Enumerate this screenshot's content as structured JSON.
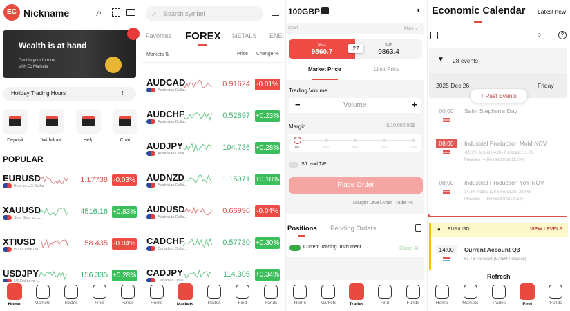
{
  "colors": {
    "accent": "#e84a3f",
    "up": "#3cbf5a",
    "down": "#ef4b45"
  },
  "home": {
    "nickname": "Nickname",
    "logo": "EC",
    "banner": {
      "title": "Wealth is at hand",
      "subtitle1": "Double your fortune",
      "subtitle2": "with Ec Markets"
    },
    "holiday": "Holiday Trading Hours",
    "actions": [
      {
        "label": "Deposit",
        "icon": "deposit-icon"
      },
      {
        "label": "Withdraw",
        "icon": "withdraw-icon"
      },
      {
        "label": "Help",
        "icon": "help-icon"
      },
      {
        "label": "Chat",
        "icon": "chat-icon"
      }
    ],
    "popular_title": "POPULAR",
    "rows": [
      {
        "symbol": "EURUSD",
        "desc": "Euro vs US Dollar",
        "price": "1.17738",
        "change": "-0.03%",
        "dir": "down"
      },
      {
        "symbol": "XAUUSD",
        "desc": "Spot Gold vs U...",
        "price": "4516.16",
        "change": "+0.83%",
        "dir": "up"
      },
      {
        "symbol": "XTIUSD",
        "desc": "WTI Crude Oil...",
        "price": "58.435",
        "change": "-0.04%",
        "dir": "down"
      },
      {
        "symbol": "USDJPY",
        "desc": "US Dollar vs ...",
        "price": "156.335",
        "change": "+0.28%",
        "dir": "up"
      }
    ]
  },
  "markets": {
    "search_placeholder": "Search symbol",
    "tabs": [
      "Favorites",
      "FOREX",
      "METALS",
      "ENEI"
    ],
    "active_tab": "FOREX",
    "headers": {
      "markets": "Markets ⇅",
      "price": "Price",
      "change": "Change %"
    },
    "rows": [
      {
        "symbol": "AUDCAD",
        "desc": "Australian Dolla...",
        "price": "0.91624",
        "change": "-0.01%",
        "dir": "down"
      },
      {
        "symbol": "AUDCHF",
        "desc": "Australian Dolla...",
        "price": "0.52897",
        "change": "+0.23%",
        "dir": "up"
      },
      {
        "symbol": "AUDJPY",
        "desc": "Australian Dolla...",
        "price": "104.736",
        "change": "+0.28%",
        "dir": "up"
      },
      {
        "symbol": "AUDNZD",
        "desc": "Australian Dolla...",
        "price": "1.15071",
        "change": "+0.18%",
        "dir": "up"
      },
      {
        "symbol": "AUDUSD",
        "desc": "Australian Dolla...",
        "price": "0.66996",
        "change": "-0.04%",
        "dir": "down"
      },
      {
        "symbol": "CADCHF",
        "desc": "Canadian Dolla...",
        "price": "0.57730",
        "change": "+0.30%",
        "dir": "up"
      },
      {
        "symbol": "CADJPY",
        "desc": "Canadian Dolla...",
        "price": "114.305",
        "change": "+0.34%",
        "dir": "up"
      }
    ]
  },
  "trades": {
    "title": "100GBP",
    "chart": "Chart",
    "more": "More ⌄",
    "sell_label": "SELL",
    "sell_price": "9860.7",
    "spread": "27",
    "buy_label": "BUY",
    "buy_price": "9863.4",
    "tabs": [
      "Market Price",
      "Limit Price"
    ],
    "volume_label": "Trading Volume",
    "volume_placeholder": "Volume",
    "margin_label": "Margin",
    "margin_value": "-$/10,000.00$",
    "slider_ticks": [
      "0%",
      "25%",
      "50%",
      "75%",
      "100%"
    ],
    "slider_value_percent": 0,
    "sltp": "S/L and T/P",
    "place_order": "Place Order",
    "margin_level": "Margin Level After Trade -%",
    "pos_tabs": [
      "Positions",
      "Pending Orders"
    ],
    "current_instrument": "Current Trading Instrument",
    "close_all": "Close All"
  },
  "calendar": {
    "title": "Economic Calendar",
    "latest": "Latest new",
    "events_count": "28 events",
    "date": "2025 Dec 26",
    "weekday": "Friday",
    "past_events": "Past Events",
    "events": [
      {
        "time": "00:00",
        "name": "Saint Stephen's Day",
        "detail1": "",
        "detail2": ""
      },
      {
        "time": "08:00",
        "name": "Industrial Production MoM NOV",
        "detail1": "-10.2% Actual (-4.8% Forecast, 11.2%",
        "detail2": "Previous — Revised from11.5%)"
      },
      {
        "time": "08:00",
        "name": "Industrial Production YoY NOV",
        "detail1": "14.3% Actual (21% Forecast, 28.9%",
        "detail2": "Previous — Revised from29.1%)"
      }
    ],
    "pair": "EUR/USD",
    "view_levels": "VIEW LEVELS",
    "upcoming": {
      "time": "14:00",
      "name": "Current Account Q3",
      "detail": "€1.7B Forecast (€725M Previous)"
    },
    "refresh": "Refresh"
  },
  "nav": [
    "Home",
    "Markets",
    "Trades",
    "Find",
    "Funds"
  ]
}
